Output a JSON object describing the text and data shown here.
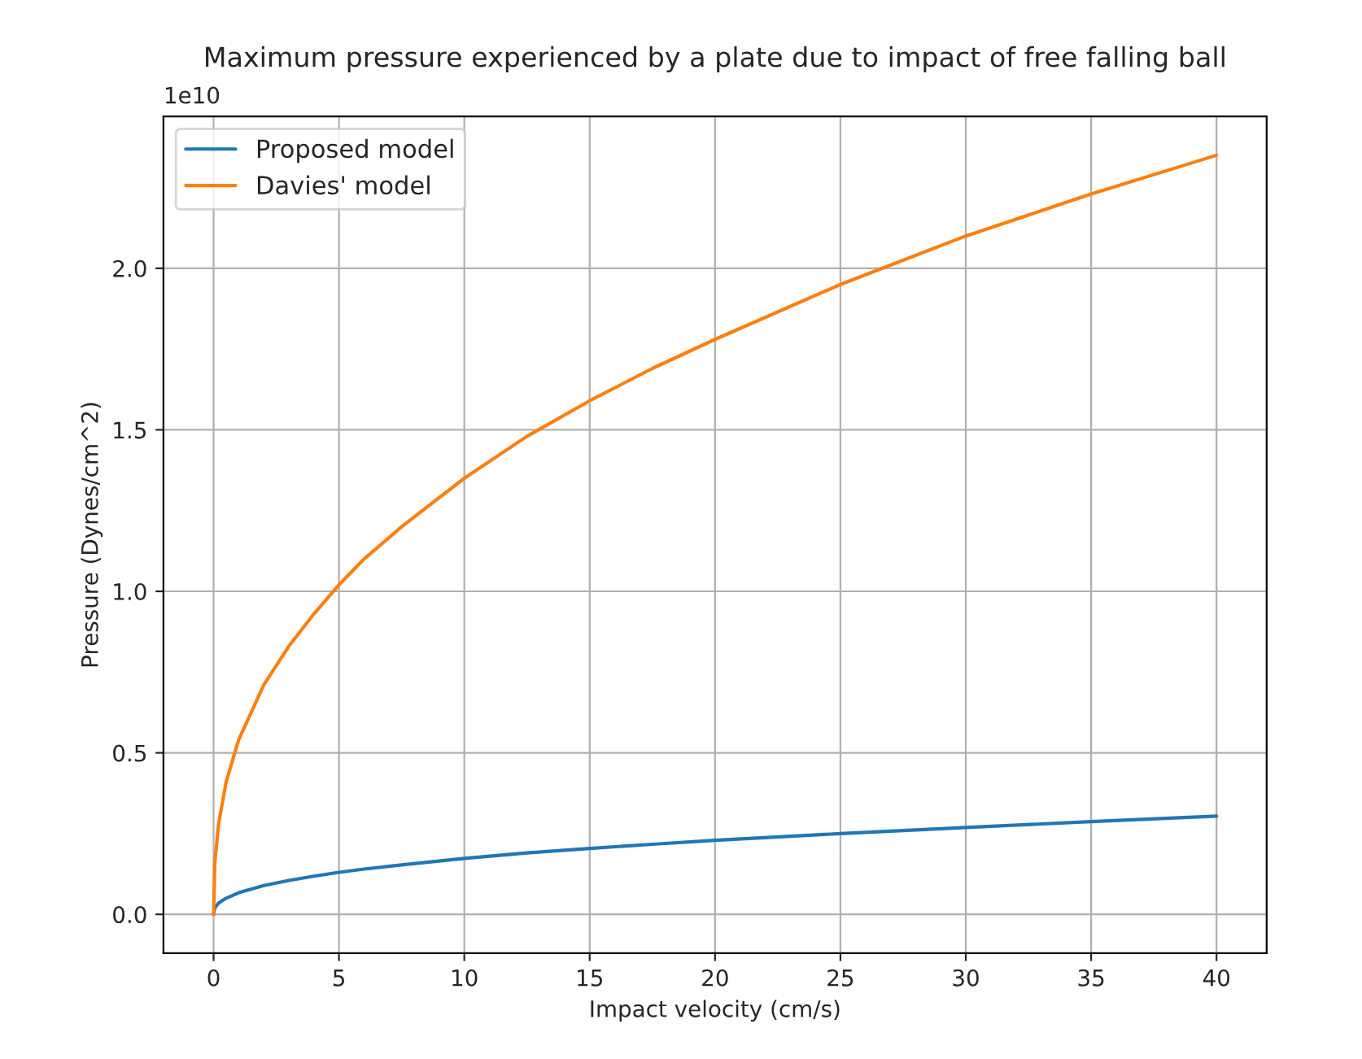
{
  "chart_data": {
    "type": "line",
    "title": "Maximum pressure experienced by a plate due to impact of free falling ball",
    "xlabel": "Impact velocity (cm/s)",
    "ylabel": "Pressure (Dynes/cm^2)",
    "annotations": [
      "1e10"
    ],
    "x": [
      0,
      0.05,
      0.2,
      0.5,
      1,
      2,
      3,
      4,
      5,
      6,
      7.5,
      10,
      12.5,
      15,
      17.5,
      20,
      25,
      30,
      35,
      40
    ],
    "series": [
      {
        "name": "Proposed model",
        "color": "#1f77b4",
        "values": [
          0,
          0.02,
          0.035,
          0.05,
          0.067,
          0.089,
          0.105,
          0.118,
          0.13,
          0.14,
          0.153,
          0.173,
          0.19,
          0.204,
          0.217,
          0.229,
          0.25,
          0.269,
          0.287,
          0.304
        ]
      },
      {
        "name": "Davies' model",
        "color": "#ff7f0e",
        "values": [
          0,
          0.16,
          0.28,
          0.41,
          0.54,
          0.71,
          0.83,
          0.93,
          1.02,
          1.1,
          1.2,
          1.35,
          1.48,
          1.59,
          1.69,
          1.78,
          1.95,
          2.1,
          2.23,
          2.35
        ]
      }
    ],
    "xlim": [
      -2,
      42
    ],
    "xticks": [
      0,
      5,
      10,
      15,
      20,
      25,
      30,
      35,
      40
    ],
    "ylim": [
      -0.12,
      2.47
    ],
    "yticks": [
      {
        "value": 0,
        "label": "0.0"
      },
      0.5,
      {
        "value": 1,
        "label": "1.0"
      },
      1.5,
      {
        "value": 2,
        "label": "2.0"
      }
    ],
    "grid": true,
    "legend": "top left",
    "line_style": "solid",
    "marker": "none"
  }
}
